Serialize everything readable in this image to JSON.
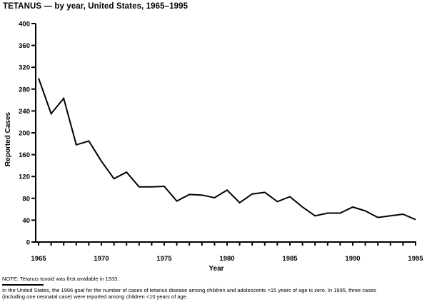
{
  "title": "TETANUS — by year, United States, 1965–1995",
  "chart_data": {
    "type": "line",
    "title": "TETANUS — by year, United States, 1965–1995",
    "xlabel": "Year",
    "ylabel": "Reported Cases",
    "x": [
      1965,
      1966,
      1967,
      1968,
      1969,
      1970,
      1971,
      1972,
      1973,
      1974,
      1975,
      1976,
      1977,
      1978,
      1979,
      1980,
      1981,
      1982,
      1983,
      1984,
      1985,
      1986,
      1987,
      1988,
      1989,
      1990,
      1991,
      1992,
      1993,
      1994,
      1995
    ],
    "values": [
      300,
      235,
      263,
      178,
      185,
      148,
      116,
      128,
      101,
      101,
      102,
      75,
      87,
      86,
      81,
      95,
      72,
      88,
      91,
      74,
      83,
      64,
      48,
      53,
      53,
      64,
      57,
      45,
      48,
      51,
      41
    ],
    "ylim": [
      0,
      400
    ],
    "ytick_interval": 40,
    "xtick_minor_interval": 1,
    "xtick_label_interval": 5,
    "xtick_labels": [
      "1965",
      "1970",
      "1975",
      "1980",
      "1985",
      "1990",
      "1995"
    ],
    "grid": false,
    "legend": "none",
    "line_color": "#000000",
    "background_color": "#ffffff"
  },
  "note": "NOTE: Tetanus toxoid was first available in 1933.",
  "footnote_line1": "In the United States, the 1996 goal for the number of cases of tetanus disease among children and adolescents <15 years of age is zero. In 1995, three cases",
  "footnote_line2": "(including one neonatal case) were reported among children <10 years of age."
}
